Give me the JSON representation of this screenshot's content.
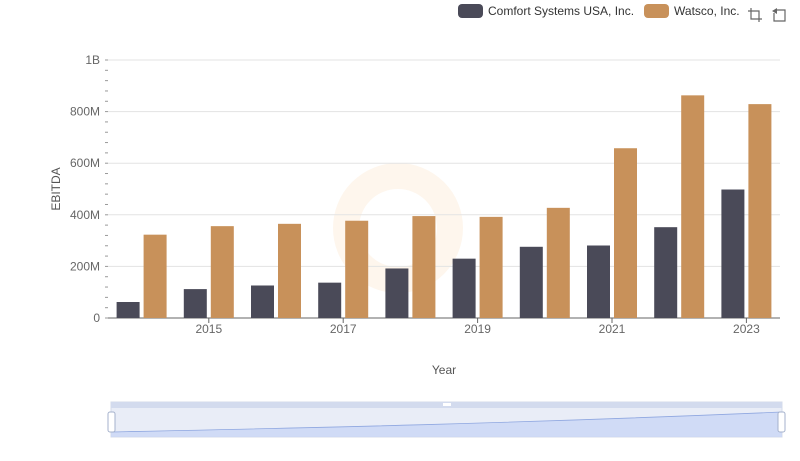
{
  "chart_data": {
    "type": "bar",
    "x": [
      2014,
      2015,
      2016,
      2017,
      2018,
      2019,
      2020,
      2021,
      2022,
      2023
    ],
    "xtick_labels": [
      "2015",
      "2017",
      "2019",
      "2021",
      "2023"
    ],
    "xtick_values": [
      2015,
      2017,
      2019,
      2021,
      2023
    ],
    "series": [
      {
        "name": "Comfort Systems USA, Inc.",
        "color": "#4a4a58",
        "values": [
          62000000,
          112000000,
          126000000,
          137000000,
          192000000,
          230000000,
          276000000,
          281000000,
          352000000,
          498000000
        ]
      },
      {
        "name": "Watsco, Inc.",
        "color": "#c8915a",
        "values": [
          323000000,
          356000000,
          365000000,
          377000000,
          395000000,
          392000000,
          427000000,
          658000000,
          863000000,
          829000000
        ]
      }
    ],
    "ylabel": "EBITDA",
    "xlabel": "Year",
    "ylim": [
      0,
      1000000000
    ],
    "ytick_values": [
      0,
      200000000,
      400000000,
      600000000,
      800000000,
      1000000000
    ],
    "ytick_labels": [
      "0",
      "200M",
      "400M",
      "600M",
      "800M",
      "1B"
    ],
    "grid": true,
    "legend_position": "top-right"
  },
  "toolbox": {
    "zoom_icon": "zoom-icon",
    "reset_icon": "restore-icon"
  },
  "slider": {
    "range": [
      0,
      100
    ]
  }
}
